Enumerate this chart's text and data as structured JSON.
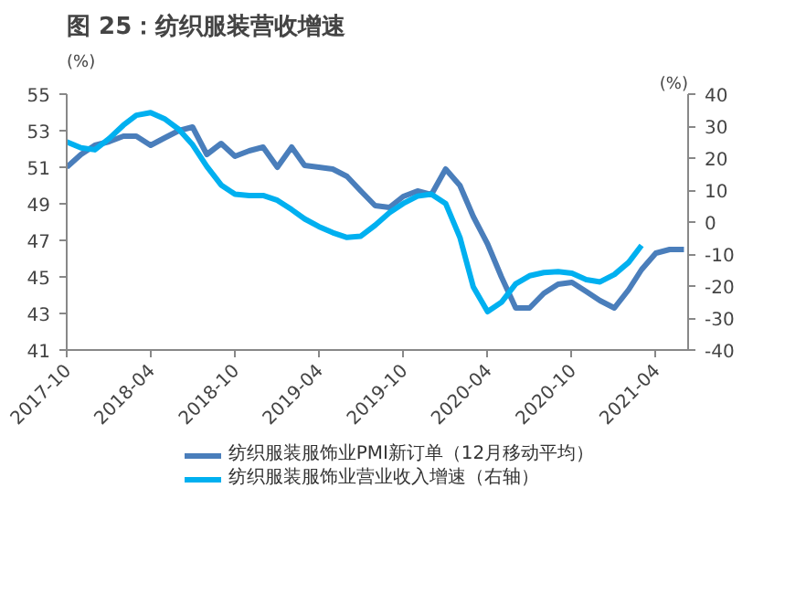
{
  "chart_data": {
    "type": "line",
    "title": "图 25：纺织服装营收增速",
    "ylabel": "(%)",
    "y2label": "(%)",
    "x": [
      "2017-10",
      "2017-11",
      "2017-12",
      "2018-01",
      "2018-02",
      "2018-03",
      "2018-04",
      "2018-05",
      "2018-06",
      "2018-07",
      "2018-08",
      "2018-09",
      "2018-10",
      "2018-11",
      "2018-12",
      "2019-01",
      "2019-02",
      "2019-03",
      "2019-04",
      "2019-05",
      "2019-06",
      "2019-07",
      "2019-08",
      "2019-09",
      "2019-10",
      "2019-11",
      "2019-12",
      "2020-01",
      "2020-02",
      "2020-03",
      "2020-04",
      "2020-05",
      "2020-06",
      "2020-07",
      "2020-08",
      "2020-09",
      "2020-10",
      "2020-11",
      "2020-12",
      "2021-01",
      "2021-02",
      "2021-03",
      "2021-04",
      "2021-05",
      "2021-06"
    ],
    "series": [
      {
        "name": "纺织服装服饰业PMI新订单（12月移动平均）",
        "color": "#4a7ebb",
        "values": [
          51.0,
          51.7,
          52.2,
          52.4,
          52.7,
          52.7,
          52.2,
          52.6,
          53.0,
          53.2,
          51.7,
          52.3,
          51.6,
          51.9,
          52.1,
          51.0,
          52.1,
          51.1,
          51.0,
          50.9,
          50.5,
          49.7,
          48.9,
          48.8,
          49.4,
          49.7,
          49.5,
          50.9,
          50.0,
          48.3,
          46.8,
          45.0,
          43.3,
          43.3,
          44.1,
          44.6,
          44.7,
          44.2,
          43.7,
          43.3,
          44.3,
          45.4,
          46.3,
          46.5,
          46.5
        ]
      },
      {
        "name": "纺织服装服饰业营业收入增速（右轴）",
        "color": "#00b0f0",
        "axis": "y2",
        "values": [
          25.1,
          23.2,
          22.6,
          26.1,
          30.3,
          33.4,
          34.2,
          32.3,
          29.0,
          24.2,
          17.4,
          11.6,
          8.7,
          8.3,
          8.3,
          6.8,
          3.9,
          1.0,
          -1.4,
          -3.3,
          -4.8,
          -4.4,
          -1.0,
          2.9,
          5.8,
          8.1,
          8.7,
          5.8,
          -4.8,
          -20.3,
          -28.0,
          -25.1,
          -19.3,
          -16.8,
          -15.8,
          -15.5,
          -16.0,
          -18.0,
          -18.7,
          -16.4,
          -12.6,
          -7.3,
          null,
          null,
          null
        ]
      }
    ],
    "xlim": [
      "2017-10",
      "2021-06-10"
    ],
    "xticks": [
      "2017-10",
      "2018-04",
      "2018-10",
      "2019-04",
      "2019-10",
      "2020-04",
      "2020-10",
      "2021-04"
    ],
    "ylim": [
      41,
      55
    ],
    "yticks": [
      41,
      43,
      45,
      47,
      49,
      51,
      53,
      55
    ],
    "y2lim": [
      -40,
      40
    ],
    "y2ticks": [
      -40,
      -30,
      -20,
      -10,
      0,
      10,
      20,
      30,
      40
    ],
    "grid": false,
    "legend": "bottom",
    "marker": "none",
    "line_style": "solid"
  }
}
